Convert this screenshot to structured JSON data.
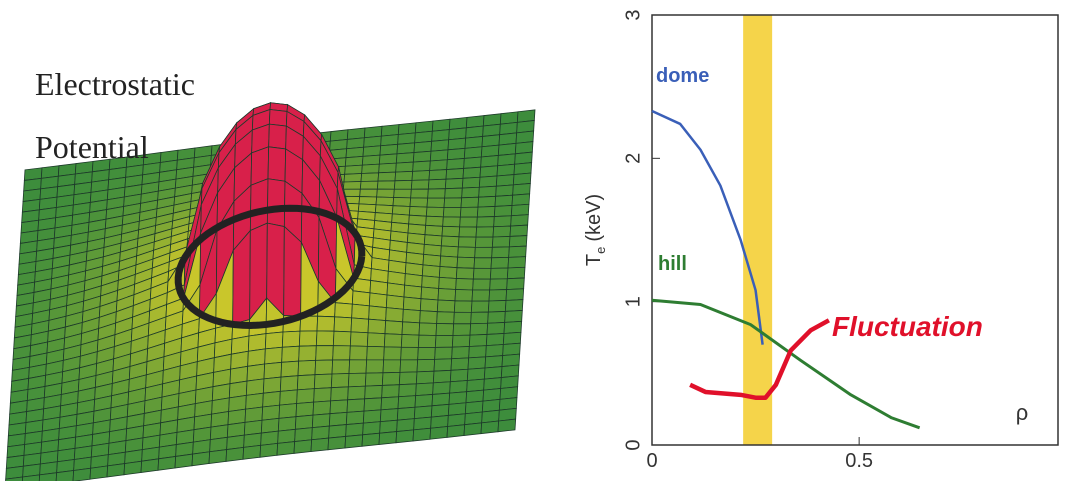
{
  "chart_data": {
    "type": "line",
    "surface_label": [
      "Electrostatic",
      "Potential"
    ],
    "y_label": {
      "main": "T",
      "sub": "e",
      "unit": "(keV)"
    },
    "x_label": "ρ",
    "xlim": [
      0,
      0.98
    ],
    "xticks": [
      0,
      0.5
    ],
    "ylim": [
      0,
      3
    ],
    "yticks": [
      0,
      1,
      2,
      3
    ],
    "band": {
      "x": [
        0.22,
        0.29
      ],
      "color": "#f5d44a"
    },
    "series": [
      {
        "name": "dome",
        "color": "#3a5fb8",
        "x": [
          0,
          0.068,
          0.117,
          0.165,
          0.214,
          0.25,
          0.267
        ],
        "values": [
          2.33,
          2.24,
          2.06,
          1.81,
          1.43,
          1.08,
          0.7
        ]
      },
      {
        "name": "hill",
        "color": "#2e7d32",
        "x": [
          0,
          0.117,
          0.238,
          0.359,
          0.48,
          0.578,
          0.646
        ],
        "values": [
          1.01,
          0.98,
          0.84,
          0.59,
          0.35,
          0.19,
          0.12
        ]
      },
      {
        "name": "Fluctuation",
        "color": "#e0102a",
        "x": [
          0.092,
          0.129,
          0.214,
          0.25,
          0.274,
          0.299,
          0.335,
          0.383,
          0.427
        ],
        "values": [
          0.42,
          0.37,
          0.35,
          0.33,
          0.33,
          0.42,
          0.66,
          0.8,
          0.87
        ]
      }
    ]
  }
}
